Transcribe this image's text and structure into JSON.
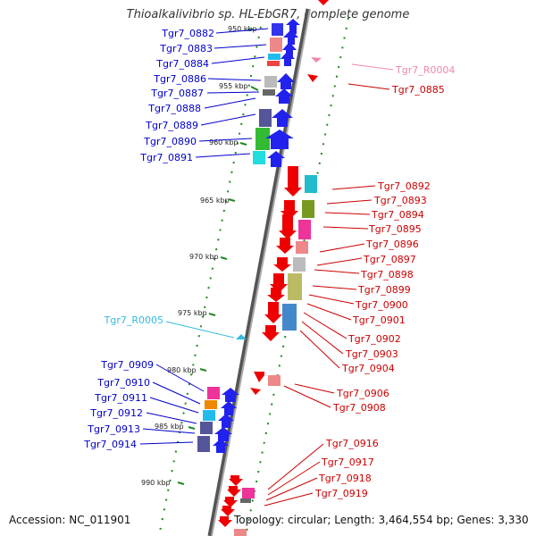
{
  "title": "Thioalkalivibrio sp. HL-EbGR7, complete genome",
  "accession": "Accession: NC_011901",
  "topology": "Topology: circular; Length: 3,464,554 bp; Genes: 3,330",
  "colors": {
    "left_label": "#0000cc",
    "right_label": "#cc0000",
    "trna_label": "#33bbdd",
    "rrna_label": "#ee88aa",
    "ticks": "#228822"
  },
  "kbp_ticks": [
    "950 kbp",
    "955 kbp",
    "960 kbp",
    "965 kbp",
    "970 kbp",
    "975 kbp",
    "980 kbp",
    "985 kbp",
    "990 kbp"
  ],
  "left_genes": [
    "Tgr7_0882",
    "Tgr7_0883",
    "Tgr7_0884",
    "Tgr7_0886",
    "Tgr7_0887",
    "Tgr7_0888",
    "Tgr7_0889",
    "Tgr7_0890",
    "Tgr7_0891",
    "Tgr7_0909",
    "Tgr7_0910",
    "Tgr7_0911",
    "Tgr7_0912",
    "Tgr7_0913",
    "Tgr7_0914"
  ],
  "left_rna": "Tgr7_R0005",
  "right_genes": [
    "Tgr7_0885",
    "Tgr7_0892",
    "Tgr7_0893",
    "Tgr7_0894",
    "Tgr7_0895",
    "Tgr7_0896",
    "Tgr7_0897",
    "Tgr7_0898",
    "Tgr7_0899",
    "Tgr7_0900",
    "Tgr7_0901",
    "Tgr7_0902",
    "Tgr7_0903",
    "Tgr7_0904",
    "Tgr7_0906",
    "Tgr7_0908",
    "Tgr7_0916",
    "Tgr7_0917",
    "Tgr7_0918",
    "Tgr7_0919"
  ],
  "right_rna": "Tgr7_R0004"
}
